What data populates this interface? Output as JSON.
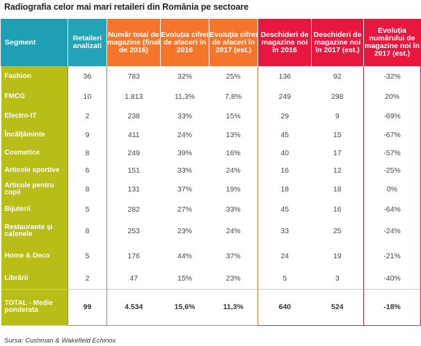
{
  "title": "Radiografia celor mai mari retaileri din România pe sectoare",
  "headers": [
    "Segment",
    "Retaileri analizati",
    "Număr total de magazine (final de 2016)",
    "Evoluția cifrei de afaceri în 2016",
    "Evoluția cifrei de afaceri în 2017 (est.)",
    "Deschideri de magazine noi în 2016",
    "Deschideri de magazine noi în 2017 (est.)",
    "Evoluția numărului de magazine noi în 2017 (est.)"
  ],
  "rows": [
    [
      "Fashion",
      "36",
      "783",
      "32%",
      "25%",
      "136",
      "92",
      "-32%"
    ],
    [
      "FMCG",
      "10",
      "1.813",
      "11,3%",
      "7,8%",
      "249",
      "298",
      "20%"
    ],
    [
      "Electro-IT",
      "2",
      "238",
      "33%",
      "15%",
      "29",
      "9",
      "-69%"
    ],
    [
      "Încălțăminte",
      "9",
      "411",
      "24%",
      "13%",
      "45",
      "15",
      "-67%"
    ],
    [
      "Cosmetice",
      "8",
      "249",
      "39%",
      "16%",
      "40",
      "17",
      "-57%"
    ],
    [
      "Articole sportive",
      "6",
      "151",
      "33%",
      "24%",
      "16",
      "12",
      "-25%"
    ],
    [
      "Articole pentru copii",
      "8",
      "131",
      "37%",
      "19%",
      "18",
      "18",
      "0%"
    ],
    [
      "Bijuterii",
      "5",
      "282",
      "27%",
      "33%",
      "45",
      "16",
      "-64%"
    ],
    [
      "Restaurante și cafenele",
      "8",
      "253",
      "23%",
      "24%",
      "33",
      "25",
      "-24%"
    ],
    [
      "Home & Deco",
      "5",
      "176",
      "44%",
      "37%",
      "24",
      "19",
      "-21%"
    ],
    [
      "Librării",
      "2",
      "47",
      "15%",
      "23%",
      "5",
      "3",
      "-40%"
    ]
  ],
  "total": [
    "TOTAL - Medie ponderata",
    "99",
    "4.534",
    "15,6%",
    "11,3%",
    "640",
    "524",
    "-18%"
  ],
  "source": "Sursa: Cushman & Wakefield Echinox",
  "colors": {
    "segment_header": "#1f9fb3",
    "orange_header": "#f5762a",
    "red_header": "#e7173f",
    "segment_column": "#b8bd18"
  }
}
